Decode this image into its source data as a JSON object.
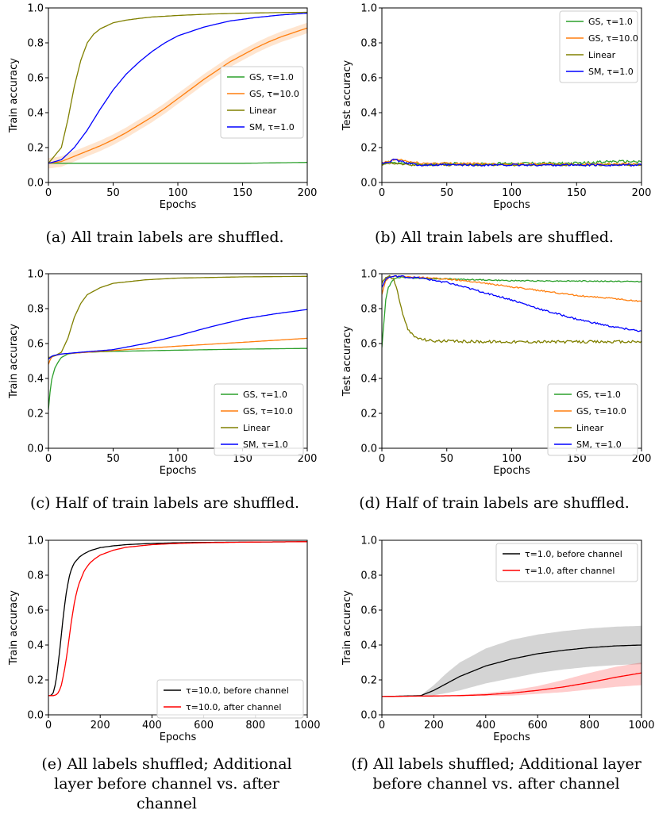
{
  "figure": {
    "captions": [
      "(a) All train labels are shuffled.",
      "(b) All train labels are shuffled.",
      "(c) Half of train labels are shuffled.",
      "(d) Half of train labels are shuffled.",
      "(e) All labels shuffled; Additional layer before channel vs. after channel",
      "(f) All labels shuffled; Additional layer before channel vs. after channel"
    ]
  },
  "chart_data": [
    {
      "id": "a",
      "type": "line",
      "xlabel": "Epochs",
      "ylabel": "Train accuracy",
      "xlim": [
        0,
        200
      ],
      "ylim": [
        0,
        1
      ],
      "xticks": [
        0,
        50,
        100,
        150,
        200
      ],
      "yticks": [
        0.0,
        0.2,
        0.4,
        0.6,
        0.8,
        1.0
      ],
      "legend_position": "center-right",
      "series": [
        {
          "name": "GS, τ=1.0",
          "color": "#2ca02c",
          "x": [
            0,
            50,
            100,
            150,
            200
          ],
          "y": [
            0.11,
            0.11,
            0.11,
            0.11,
            0.115
          ]
        },
        {
          "name": "GS, τ=10.0",
          "color": "#ff7f0e",
          "x": [
            0,
            10,
            20,
            30,
            40,
            50,
            60,
            70,
            80,
            90,
            100,
            110,
            120,
            130,
            140,
            150,
            160,
            170,
            180,
            190,
            200
          ],
          "y": [
            0.11,
            0.12,
            0.15,
            0.18,
            0.21,
            0.245,
            0.285,
            0.33,
            0.375,
            0.425,
            0.48,
            0.535,
            0.59,
            0.64,
            0.69,
            0.73,
            0.77,
            0.805,
            0.835,
            0.86,
            0.885
          ],
          "band": 0.03
        },
        {
          "name": "Linear",
          "color": "#808000",
          "x": [
            0,
            10,
            15,
            20,
            25,
            30,
            35,
            40,
            50,
            60,
            70,
            80,
            100,
            125,
            150,
            175,
            200
          ],
          "y": [
            0.11,
            0.2,
            0.36,
            0.55,
            0.7,
            0.8,
            0.85,
            0.88,
            0.915,
            0.93,
            0.94,
            0.948,
            0.957,
            0.965,
            0.97,
            0.973,
            0.975
          ]
        },
        {
          "name": "SM, τ=1.0",
          "color": "#0000ff",
          "x": [
            0,
            10,
            20,
            30,
            40,
            50,
            60,
            70,
            80,
            90,
            100,
            120,
            140,
            160,
            180,
            200
          ],
          "y": [
            0.11,
            0.13,
            0.2,
            0.3,
            0.42,
            0.53,
            0.62,
            0.69,
            0.75,
            0.8,
            0.84,
            0.89,
            0.925,
            0.945,
            0.96,
            0.97
          ]
        }
      ]
    },
    {
      "id": "b",
      "type": "line",
      "xlabel": "Epochs",
      "ylabel": "Test accuracy",
      "xlim": [
        0,
        200
      ],
      "ylim": [
        0,
        1
      ],
      "xticks": [
        0,
        50,
        100,
        150,
        200
      ],
      "yticks": [
        0.0,
        0.2,
        0.4,
        0.6,
        0.8,
        1.0
      ],
      "legend_position": "top-right",
      "series": [
        {
          "name": "GS, τ=1.0",
          "color": "#2ca02c",
          "x": [
            0,
            5,
            10,
            20,
            30,
            50,
            75,
            100,
            125,
            150,
            175,
            200
          ],
          "y": [
            0.1,
            0.12,
            0.11,
            0.11,
            0.1,
            0.11,
            0.105,
            0.11,
            0.11,
            0.11,
            0.12,
            0.12
          ],
          "noise": 0.007
        },
        {
          "name": "GS, τ=10.0",
          "color": "#ff7f0e",
          "x": [
            0,
            5,
            10,
            15,
            20,
            30,
            50,
            100,
            150,
            200
          ],
          "y": [
            0.11,
            0.12,
            0.13,
            0.13,
            0.12,
            0.11,
            0.11,
            0.105,
            0.105,
            0.105
          ],
          "noise": 0.006
        },
        {
          "name": "Linear",
          "color": "#808000",
          "x": [
            0,
            5,
            10,
            20,
            50,
            100,
            150,
            200
          ],
          "y": [
            0.1,
            0.11,
            0.11,
            0.1,
            0.1,
            0.1,
            0.1,
            0.1
          ],
          "noise": 0.005
        },
        {
          "name": "SM, τ=1.0",
          "color": "#0000ff",
          "x": [
            0,
            5,
            10,
            20,
            30,
            50,
            100,
            150,
            200
          ],
          "y": [
            0.11,
            0.12,
            0.13,
            0.11,
            0.1,
            0.1,
            0.1,
            0.1,
            0.1
          ],
          "noise": 0.006
        }
      ]
    },
    {
      "id": "c",
      "type": "line",
      "xlabel": "Epochs",
      "ylabel": "Train accuracy",
      "xlim": [
        0,
        200
      ],
      "ylim": [
        0,
        1
      ],
      "xticks": [
        0,
        50,
        100,
        150,
        200
      ],
      "yticks": [
        0.0,
        0.2,
        0.4,
        0.6,
        0.8,
        1.0
      ],
      "legend_position": "bottom-right",
      "series": [
        {
          "name": "GS, τ=1.0",
          "color": "#2ca02c",
          "x": [
            0,
            2,
            5,
            8,
            10,
            15,
            20,
            30,
            50,
            100,
            150,
            200
          ],
          "y": [
            0.22,
            0.38,
            0.46,
            0.5,
            0.52,
            0.54,
            0.545,
            0.55,
            0.555,
            0.562,
            0.568,
            0.572
          ]
        },
        {
          "name": "GS, τ=10.0",
          "color": "#ff7f0e",
          "x": [
            0,
            2,
            5,
            10,
            20,
            50,
            100,
            150,
            200
          ],
          "y": [
            0.48,
            0.52,
            0.53,
            0.54,
            0.545,
            0.56,
            0.585,
            0.607,
            0.63
          ]
        },
        {
          "name": "Linear",
          "color": "#808000",
          "x": [
            0,
            5,
            10,
            15,
            20,
            25,
            30,
            40,
            50,
            75,
            100,
            150,
            200
          ],
          "y": [
            0.52,
            0.53,
            0.55,
            0.63,
            0.75,
            0.83,
            0.88,
            0.92,
            0.945,
            0.965,
            0.975,
            0.982,
            0.985
          ]
        },
        {
          "name": "SM, τ=1.0",
          "color": "#0000ff",
          "x": [
            0,
            3,
            10,
            25,
            50,
            75,
            100,
            125,
            150,
            175,
            200
          ],
          "y": [
            0.51,
            0.53,
            0.54,
            0.55,
            0.565,
            0.6,
            0.645,
            0.695,
            0.74,
            0.77,
            0.795
          ]
        }
      ]
    },
    {
      "id": "d",
      "type": "line",
      "xlabel": "Epochs",
      "ylabel": "Test accuracy",
      "xlim": [
        0,
        200
      ],
      "ylim": [
        0,
        1
      ],
      "xticks": [
        0,
        50,
        100,
        150,
        200
      ],
      "yticks": [
        0.0,
        0.2,
        0.4,
        0.6,
        0.8,
        1.0
      ],
      "legend_position": "bottom-right",
      "series": [
        {
          "name": "GS, τ=1.0",
          "color": "#2ca02c",
          "x": [
            0,
            3,
            5,
            8,
            10,
            15,
            25,
            50,
            100,
            150,
            200
          ],
          "y": [
            0.58,
            0.85,
            0.92,
            0.96,
            0.975,
            0.98,
            0.975,
            0.97,
            0.96,
            0.958,
            0.955
          ],
          "noise": 0.003
        },
        {
          "name": "GS, τ=10.0",
          "color": "#ff7f0e",
          "x": [
            0,
            3,
            5,
            10,
            15,
            25,
            50,
            75,
            100,
            125,
            150,
            175,
            200
          ],
          "y": [
            0.88,
            0.96,
            0.975,
            0.985,
            0.985,
            0.98,
            0.97,
            0.95,
            0.925,
            0.9,
            0.875,
            0.86,
            0.84
          ],
          "noise": 0.004
        },
        {
          "name": "Linear",
          "color": "#808000",
          "x": [
            0,
            3,
            6,
            9,
            12,
            15,
            18,
            21,
            25,
            30,
            40,
            60,
            100,
            150,
            200
          ],
          "y": [
            0.95,
            0.98,
            0.985,
            0.97,
            0.9,
            0.8,
            0.72,
            0.67,
            0.64,
            0.625,
            0.615,
            0.612,
            0.61,
            0.61,
            0.61
          ],
          "noise": 0.008
        },
        {
          "name": "SM, τ=1.0",
          "color": "#0000ff",
          "x": [
            0,
            3,
            6,
            10,
            15,
            20,
            30,
            50,
            75,
            100,
            125,
            150,
            175,
            200
          ],
          "y": [
            0.92,
            0.97,
            0.98,
            0.985,
            0.985,
            0.98,
            0.975,
            0.95,
            0.9,
            0.85,
            0.79,
            0.74,
            0.7,
            0.67
          ],
          "noise": 0.005
        }
      ]
    },
    {
      "id": "e",
      "type": "line",
      "xlabel": "Epochs",
      "ylabel": "Train accuracy",
      "xlim": [
        0,
        1000
      ],
      "ylim": [
        0,
        1
      ],
      "xticks": [
        0,
        200,
        400,
        600,
        800,
        1000
      ],
      "yticks": [
        0.0,
        0.2,
        0.4,
        0.6,
        0.8,
        1.0
      ],
      "legend_position": "bottom-right",
      "series": [
        {
          "name": "τ=10.0, before channel",
          "color": "#000000",
          "x": [
            0,
            10,
            20,
            30,
            40,
            50,
            60,
            70,
            80,
            90,
            100,
            120,
            140,
            160,
            200,
            250,
            300,
            400,
            500,
            600,
            800,
            1000
          ],
          "y": [
            0.11,
            0.11,
            0.13,
            0.2,
            0.32,
            0.46,
            0.6,
            0.71,
            0.79,
            0.84,
            0.87,
            0.905,
            0.925,
            0.94,
            0.958,
            0.968,
            0.975,
            0.982,
            0.986,
            0.988,
            0.99,
            0.992
          ]
        },
        {
          "name": "τ=10.0, after channel",
          "color": "#ff0000",
          "x": [
            0,
            20,
            30,
            40,
            50,
            60,
            70,
            80,
            90,
            100,
            110,
            120,
            140,
            160,
            180,
            200,
            250,
            300,
            400,
            500,
            600,
            800,
            1000
          ],
          "y": [
            0.11,
            0.11,
            0.115,
            0.13,
            0.17,
            0.24,
            0.33,
            0.44,
            0.55,
            0.64,
            0.71,
            0.76,
            0.83,
            0.87,
            0.895,
            0.915,
            0.943,
            0.96,
            0.975,
            0.982,
            0.986,
            0.99,
            0.992
          ]
        }
      ]
    },
    {
      "id": "f",
      "type": "line",
      "xlabel": "Epochs",
      "ylabel": "Train accuracy",
      "xlim": [
        0,
        1000
      ],
      "ylim": [
        0,
        1
      ],
      "xticks": [
        0,
        200,
        400,
        600,
        800,
        1000
      ],
      "yticks": [
        0.0,
        0.2,
        0.4,
        0.6,
        0.8,
        1.0
      ],
      "legend_position": "top-right",
      "series": [
        {
          "name": "τ=1.0, before channel",
          "color": "#000000",
          "x": [
            0,
            100,
            150,
            200,
            250,
            300,
            400,
            500,
            600,
            700,
            800,
            900,
            1000
          ],
          "y": [
            0.105,
            0.108,
            0.11,
            0.14,
            0.18,
            0.22,
            0.28,
            0.32,
            0.35,
            0.37,
            0.385,
            0.395,
            0.4
          ],
          "band_upper": [
            0.105,
            0.109,
            0.112,
            0.17,
            0.24,
            0.3,
            0.38,
            0.43,
            0.46,
            0.48,
            0.495,
            0.505,
            0.51
          ],
          "band_lower": [
            0.105,
            0.107,
            0.108,
            0.112,
            0.125,
            0.14,
            0.18,
            0.21,
            0.24,
            0.26,
            0.275,
            0.285,
            0.29
          ]
        },
        {
          "name": "τ=1.0, after channel",
          "color": "#ff0000",
          "x": [
            0,
            200,
            300,
            400,
            500,
            600,
            700,
            800,
            900,
            1000
          ],
          "y": [
            0.105,
            0.108,
            0.11,
            0.115,
            0.125,
            0.14,
            0.16,
            0.185,
            0.215,
            0.24
          ],
          "band_upper": [
            0.105,
            0.11,
            0.115,
            0.125,
            0.14,
            0.165,
            0.2,
            0.24,
            0.275,
            0.3
          ],
          "band_lower": [
            0.105,
            0.106,
            0.107,
            0.108,
            0.11,
            0.12,
            0.13,
            0.145,
            0.16,
            0.17
          ]
        }
      ]
    }
  ]
}
